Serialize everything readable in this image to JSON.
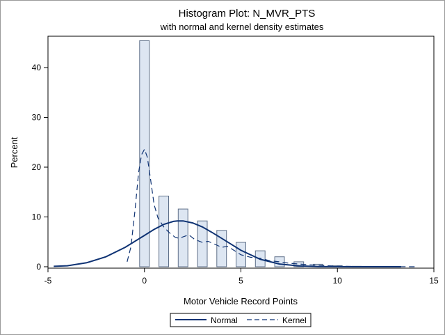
{
  "chart_data": {
    "type": "bar",
    "title": "Histogram Plot: N_MVR_PTS",
    "subtitle": "with normal and kernel density estimates",
    "xlabel": "Motor Vehicle Record Points",
    "ylabel": "Percent",
    "xlim": [
      -5,
      15
    ],
    "ylim": [
      0,
      46
    ],
    "xticks": [
      -5,
      0,
      5,
      10,
      15
    ],
    "yticks": [
      0,
      10,
      20,
      30,
      40
    ],
    "bin_width": 1,
    "bins": [
      {
        "x": 0,
        "value": 45.4
      },
      {
        "x": 1,
        "value": 14.2
      },
      {
        "x": 2,
        "value": 11.6
      },
      {
        "x": 3,
        "value": 9.2
      },
      {
        "x": 4,
        "value": 7.3
      },
      {
        "x": 5,
        "value": 4.9
      },
      {
        "x": 6,
        "value": 3.2
      },
      {
        "x": 7,
        "value": 2.0
      },
      {
        "x": 8,
        "value": 1.0
      },
      {
        "x": 9,
        "value": 0.5
      },
      {
        "x": 10,
        "value": 0.2
      },
      {
        "x": 11,
        "value": 0.1
      },
      {
        "x": 12,
        "value": 0.05
      },
      {
        "x": 13,
        "value": 0.02
      }
    ],
    "series": [
      {
        "name": "Normal",
        "style": "solid",
        "x": [
          -4.7,
          -4,
          -3,
          -2,
          -1,
          0,
          0.5,
          1,
          1.5,
          1.7,
          2,
          2.5,
          3,
          3.5,
          4,
          5,
          6,
          7,
          8,
          9,
          10,
          11,
          12,
          13.3
        ],
        "y": [
          0.08,
          0.2,
          0.8,
          2.0,
          3.9,
          6.3,
          7.5,
          8.5,
          9.1,
          9.2,
          9.2,
          8.8,
          8.0,
          6.9,
          5.7,
          3.3,
          1.5,
          0.55,
          0.17,
          0.04,
          0.01,
          0.0,
          0.0,
          0.0
        ]
      },
      {
        "name": "Kernel",
        "style": "dashed",
        "x": [
          -0.9,
          -0.7,
          -0.5,
          -0.3,
          -0.15,
          0,
          0.15,
          0.3,
          0.5,
          0.7,
          1,
          1.3,
          1.6,
          1.8,
          2,
          2.3,
          2.6,
          3,
          3.3,
          3.6,
          4,
          4.3,
          4.6,
          5,
          5.5,
          6,
          6.5,
          7,
          7.5,
          8,
          8.5,
          9,
          9.5,
          10,
          11,
          12,
          13,
          14
        ],
        "y": [
          1.0,
          4.0,
          11.0,
          19.0,
          22.5,
          23.6,
          22.0,
          18.0,
          12.5,
          9.8,
          8.0,
          6.8,
          5.9,
          5.7,
          6.0,
          6.4,
          5.5,
          4.9,
          5.1,
          4.6,
          3.9,
          4.1,
          3.4,
          2.4,
          1.9,
          1.7,
          1.2,
          1.0,
          0.7,
          0.55,
          0.4,
          0.3,
          0.2,
          0.12,
          0.05,
          0.02,
          0.01,
          0.0
        ]
      }
    ],
    "legend": [
      "Normal",
      "Kernel"
    ],
    "legend_position": "bottom",
    "colors": {
      "bar_fill": "#dde6f2",
      "bar_stroke": "#5e6f88",
      "normal_line": "#0f3374",
      "kernel_line": "#0f3374",
      "axis": "#000000"
    }
  }
}
